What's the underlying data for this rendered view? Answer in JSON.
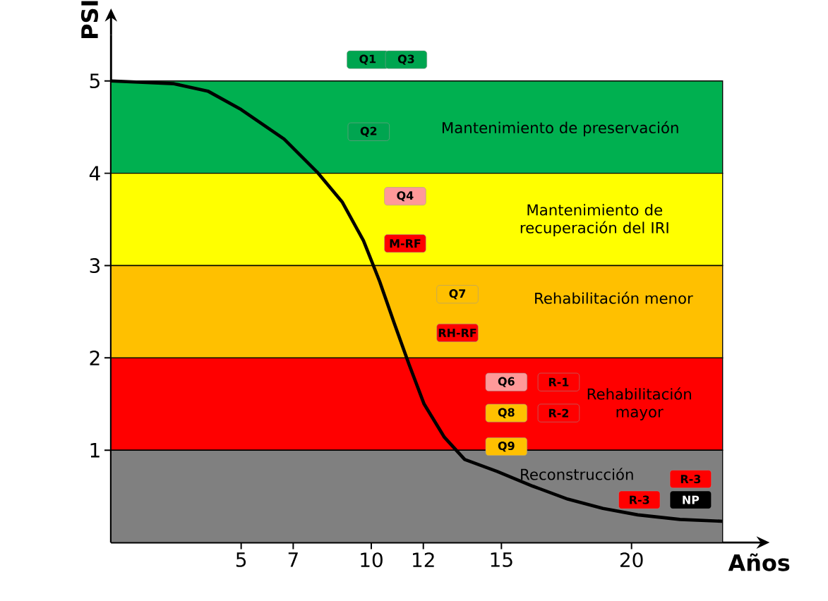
{
  "chart_data": {
    "type": "line",
    "xlabel": "Años",
    "ylabel": "PSI",
    "color": "#000000",
    "x": [
      0,
      2.42,
      3.72,
      5,
      6.65,
      7.93,
      8.88,
      9.7,
      10.32,
      10.89,
      11.45,
      12.03,
      12.81,
      13.59,
      14.84,
      16.21,
      17.55,
      18.9,
      20.24,
      21.86,
      23.5
    ],
    "values": [
      5,
      4.97,
      4.89,
      4.69,
      4.37,
      4.01,
      3.69,
      3.27,
      2.83,
      2.37,
      1.93,
      1.5,
      1.14,
      0.9,
      0.77,
      0.61,
      0.47,
      0.37,
      0.3,
      0.25,
      0.23
    ],
    "xlim": [
      0,
      23.5
    ],
    "ylim": [
      0,
      5.5
    ],
    "xticks": [
      5,
      7,
      10,
      12,
      15,
      20
    ],
    "yticks": [
      1,
      2,
      3,
      4,
      5
    ],
    "bands": [
      {
        "axis": "y",
        "from": 4,
        "to": 5,
        "color": "#00b050"
      },
      {
        "axis": "y",
        "from": 3,
        "to": 4,
        "color": "#ffff00"
      },
      {
        "axis": "y",
        "from": 2,
        "to": 3,
        "color": "#ffc000"
      },
      {
        "axis": "y",
        "from": 1,
        "to": 2,
        "color": "#ff0000"
      },
      {
        "axis": "y",
        "from": 0,
        "to": 1,
        "color": "#808080"
      }
    ],
    "annotations": [
      "Q1",
      "Q3",
      "Q2",
      "Q4",
      "M-RF",
      "Q7",
      "RH-RF",
      "Q6",
      "R-1",
      "Q8",
      "R-2",
      "Q9",
      "R-3",
      "R-3",
      "NP",
      "Mantenimiento de preservación",
      "Mantenimiento de recuperación del IRI",
      "Rehabilitación menor",
      "Rehabilitación mayor",
      "Reconstrucción"
    ]
  }
}
